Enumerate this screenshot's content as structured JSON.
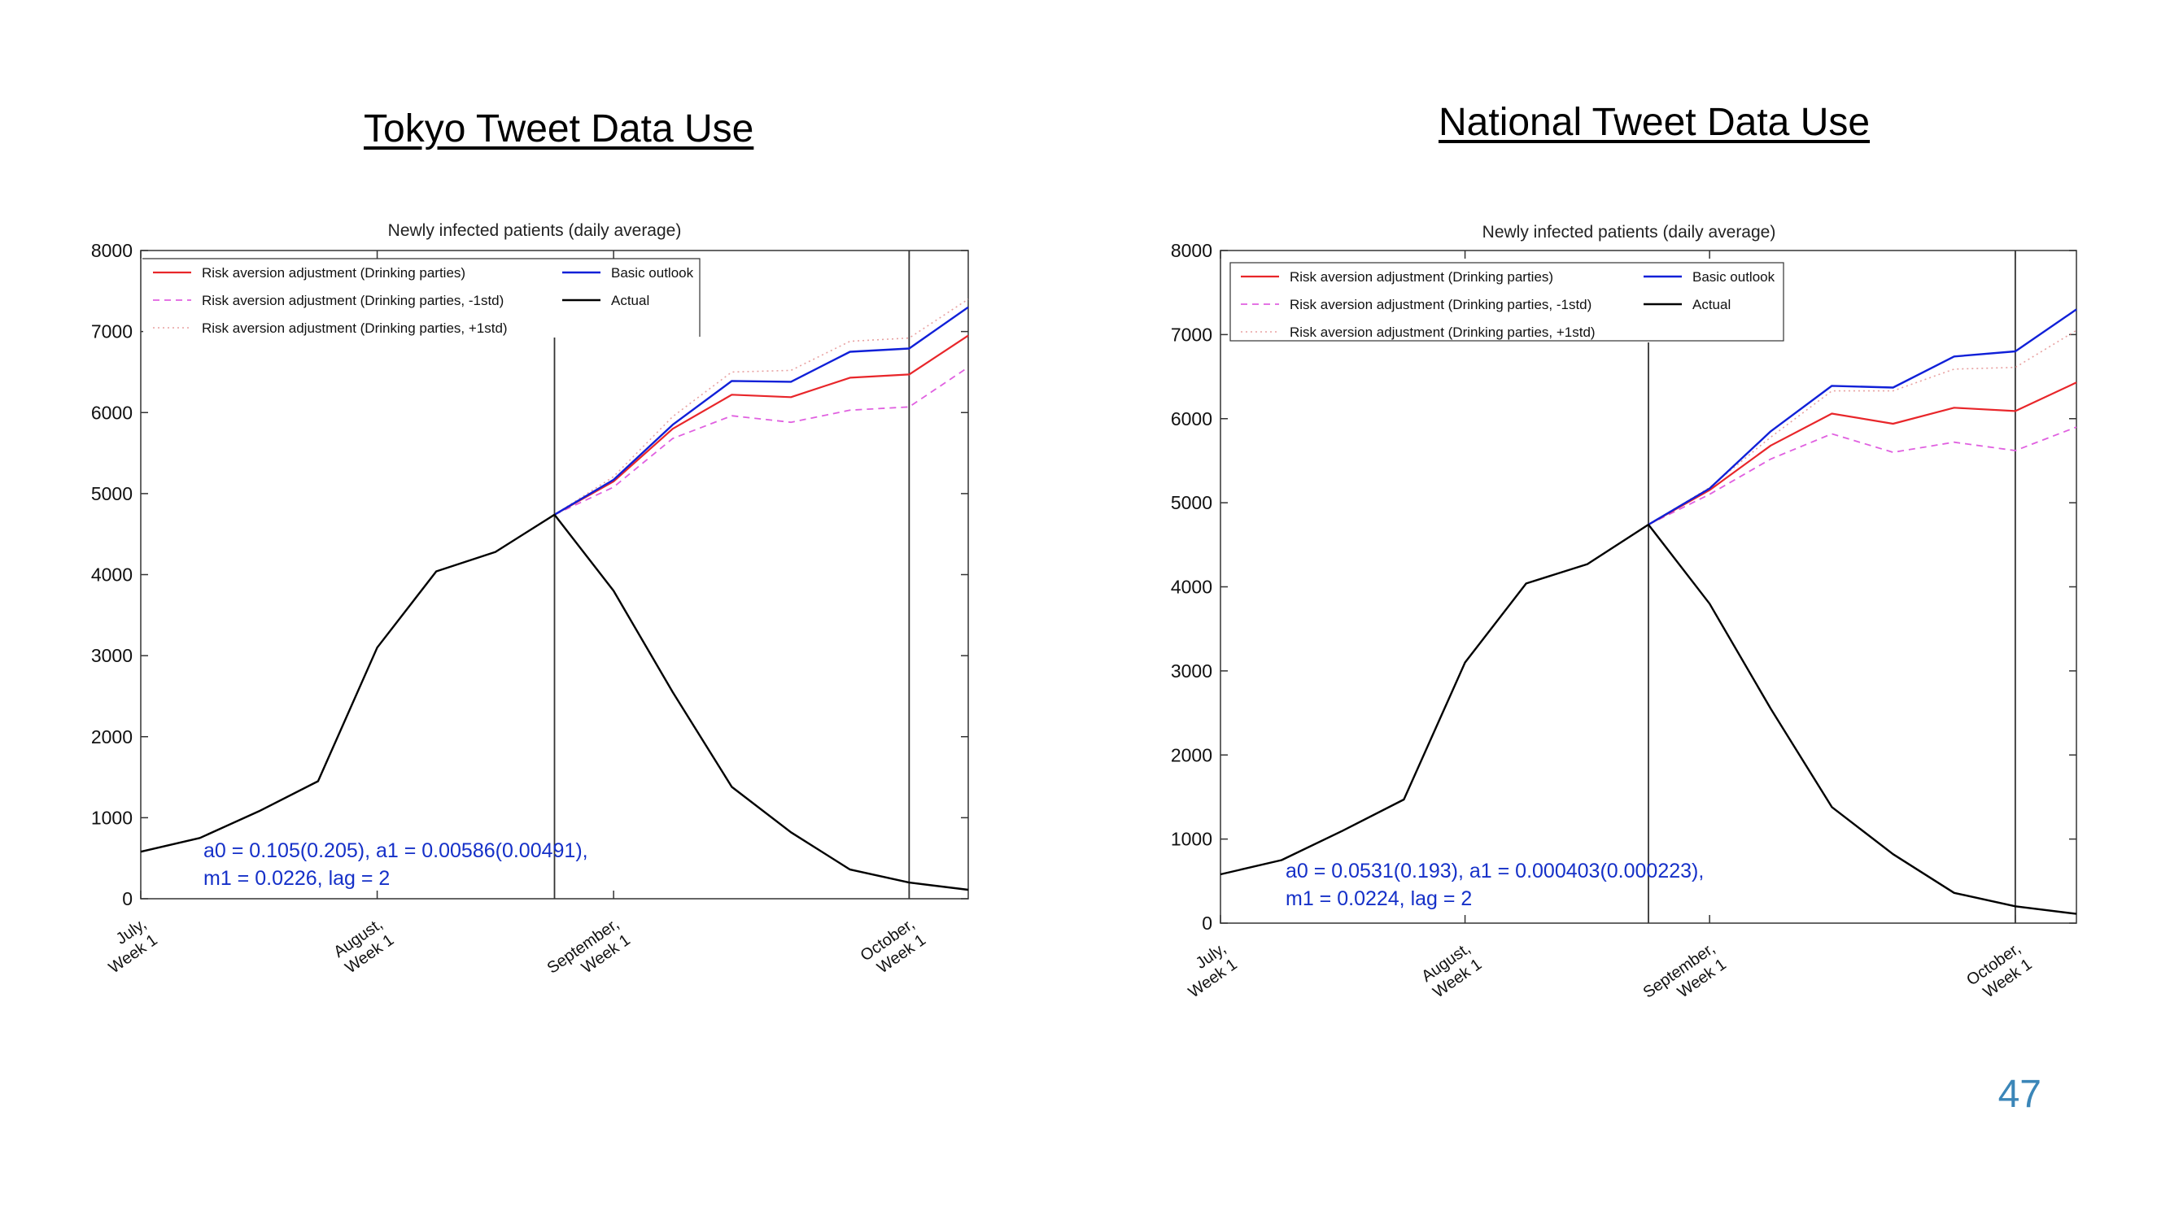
{
  "page_number": "47",
  "colors": {
    "risk": "#e8262a",
    "risk_minus": "#e060e0",
    "risk_plus": "#e8a0a0",
    "basic": "#1020d8",
    "actual": "#000000",
    "annotation": "#1530c8"
  },
  "chart_data": [
    {
      "type": "line",
      "heading": "Tokyo Tweet Data Use",
      "title": "Newly infected patients (daily average)",
      "ylim": [
        0,
        8000
      ],
      "yticks": [
        "0",
        "1000",
        "2000",
        "3000",
        "4000",
        "5000",
        "6000",
        "7000",
        "8000"
      ],
      "xtick_labels": [
        {
          "line1": "July,",
          "line2": "Week 1"
        },
        {
          "line1": "August,",
          "line2": "Week 1"
        },
        {
          "line1": "September,",
          "line2": "Week 1"
        },
        {
          "line1": "October,",
          "line2": "Week 1"
        }
      ],
      "xtick_index": [
        0,
        4,
        8,
        13
      ],
      "vlines_index": [
        7,
        13
      ],
      "legend": {
        "risk": "Risk aversion adjustment (Drinking parties)",
        "risk_minus": "Risk aversion adjustment (Drinking parties, -1std)",
        "risk_plus": "Risk aversion adjustment (Drinking parties, +1std)",
        "basic": "Basic outlook",
        "actual": "Actual"
      },
      "annotation": {
        "line1": "a0 = 0.105(0.205), a1 = 0.00586(0.00491),",
        "line2": "m1 = 0.0226, lag = 2"
      },
      "series": [
        {
          "key": "actual",
          "x": [
            0,
            1,
            2,
            3,
            4,
            5,
            6,
            7,
            8,
            9,
            10,
            11,
            12,
            13,
            14
          ],
          "values": [
            580,
            750,
            1080,
            1450,
            3100,
            4040,
            4280,
            4740,
            3800,
            2550,
            1380,
            820,
            360,
            200,
            110
          ]
        },
        {
          "key": "basic",
          "x": [
            7,
            8,
            9,
            10,
            11,
            12,
            13,
            14
          ],
          "values": [
            4740,
            5170,
            5850,
            6390,
            6380,
            6750,
            6790,
            7300
          ]
        },
        {
          "key": "risk",
          "x": [
            7,
            8,
            9,
            10,
            11,
            12,
            13,
            14
          ],
          "values": [
            4740,
            5150,
            5800,
            6220,
            6190,
            6430,
            6470,
            6950
          ]
        },
        {
          "key": "risk_minus",
          "x": [
            7,
            8,
            9,
            10,
            11,
            12,
            13,
            14
          ],
          "values": [
            4740,
            5080,
            5680,
            5960,
            5880,
            6030,
            6070,
            6560
          ]
        },
        {
          "key": "risk_plus",
          "x": [
            7,
            8,
            9,
            10,
            11,
            12,
            13,
            14
          ],
          "values": [
            4740,
            5210,
            5950,
            6500,
            6520,
            6880,
            6920,
            7400
          ]
        }
      ]
    },
    {
      "type": "line",
      "heading": "National Tweet Data Use",
      "title": "Newly infected patients (daily average)",
      "ylim": [
        0,
        8000
      ],
      "yticks": [
        "0",
        "1000",
        "2000",
        "3000",
        "4000",
        "5000",
        "6000",
        "7000",
        "8000"
      ],
      "xtick_labels": [
        {
          "line1": "July,",
          "line2": "Week 1"
        },
        {
          "line1": "August,",
          "line2": "Week 1"
        },
        {
          "line1": "September,",
          "line2": "Week 1"
        },
        {
          "line1": "October,",
          "line2": "Week 1"
        }
      ],
      "xtick_index": [
        0,
        4,
        8,
        13
      ],
      "vlines_index": [
        7,
        13
      ],
      "legend": {
        "risk": "Risk aversion adjustment (Drinking parties)",
        "risk_minus": "Risk aversion adjustment (Drinking parties, -1std)",
        "risk_plus": "Risk aversion adjustment (Drinking parties, +1std)",
        "basic": "Basic outlook",
        "actual": "Actual"
      },
      "annotation": {
        "line1": "a0 = 0.0531(0.193), a1 = 0.000403(0.000223),",
        "line2": "m1 = 0.0224, lag = 2"
      },
      "series": [
        {
          "key": "actual",
          "x": [
            0,
            1,
            2,
            3,
            4,
            5,
            6,
            7,
            8,
            9,
            10,
            11,
            12,
            13,
            14
          ],
          "values": [
            580,
            750,
            1100,
            1470,
            3100,
            4040,
            4270,
            4740,
            3800,
            2550,
            1380,
            820,
            360,
            200,
            110
          ]
        },
        {
          "key": "basic",
          "x": [
            7,
            8,
            9,
            10,
            11,
            12,
            13,
            14
          ],
          "values": [
            4740,
            5170,
            5850,
            6390,
            6370,
            6740,
            6800,
            7300
          ]
        },
        {
          "key": "risk",
          "x": [
            7,
            8,
            9,
            10,
            11,
            12,
            13,
            14
          ],
          "values": [
            4740,
            5150,
            5680,
            6060,
            5940,
            6130,
            6090,
            6430
          ]
        },
        {
          "key": "risk_minus",
          "x": [
            7,
            8,
            9,
            10,
            11,
            12,
            13,
            14
          ],
          "values": [
            4740,
            5100,
            5520,
            5820,
            5600,
            5720,
            5620,
            5900
          ]
        },
        {
          "key": "risk_plus",
          "x": [
            7,
            8,
            9,
            10,
            11,
            12,
            13,
            14
          ],
          "values": [
            4740,
            5180,
            5780,
            6330,
            6330,
            6590,
            6610,
            7050
          ]
        }
      ]
    }
  ]
}
